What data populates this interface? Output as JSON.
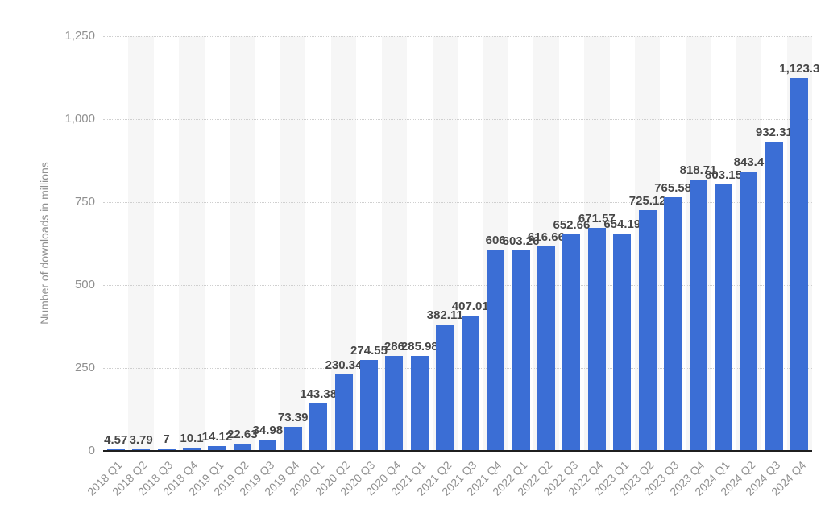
{
  "chart_data": {
    "type": "bar",
    "title": "",
    "xlabel": "",
    "ylabel": "Number of downloads in millions",
    "legend": "none",
    "grid": "horizontal-dotted",
    "background_bands": "alternating-columns",
    "ylim": [
      0,
      1250
    ],
    "yticks": {
      "values": [
        0,
        250,
        500,
        750,
        1000,
        1250
      ],
      "labels": [
        "0",
        "250",
        "500",
        "750",
        "1,000",
        "1,250"
      ]
    },
    "categories": [
      "2018 Q1",
      "2018 Q2",
      "2018 Q3",
      "2018 Q4",
      "2019 Q1",
      "2019 Q2",
      "2019 Q3",
      "2019 Q4",
      "2020 Q1",
      "2020 Q2",
      "2020 Q3",
      "2020 Q4",
      "2021 Q1",
      "2021 Q2",
      "2021 Q3",
      "2021 Q4",
      "2022 Q1",
      "2022 Q2",
      "2022 Q3",
      "2022 Q4",
      "2023 Q1",
      "2023 Q2",
      "2023 Q3",
      "2023 Q4",
      "2024 Q1",
      "2024 Q2",
      "2024 Q3",
      "2024 Q4"
    ],
    "values": [
      4.57,
      3.79,
      7,
      10.1,
      14.12,
      22.63,
      34.98,
      73.39,
      143.38,
      230.34,
      274.55,
      286,
      285.98,
      382.11,
      407.01,
      606,
      603.26,
      616.66,
      652.66,
      671.57,
      654.19,
      725.12,
      765.58,
      818.71,
      803.15,
      843.4,
      932.31,
      1123.3
    ],
    "value_labels": [
      "4.57",
      "3.79",
      "7",
      "10.1",
      "14.12",
      "22.63",
      "34.98",
      "73.39",
      "143.38",
      "230.34",
      "274.55",
      "286",
      "285.98",
      "382.11",
      "407.01",
      "606",
      "603.26",
      "616.66",
      "652.66",
      "671.57",
      "654.19",
      "725.12",
      "765.58",
      "818.71",
      "803.15",
      "843.4",
      "932.31",
      "1,123.3"
    ],
    "colors": {
      "bar": "#3b6ed5",
      "value_label": "#474747",
      "tick_label": "#8f8f8f",
      "axis_line": "#1f1f1f",
      "band": "#f6f6f6",
      "gridline": "#cfcfcf",
      "background": "#ffffff"
    }
  }
}
